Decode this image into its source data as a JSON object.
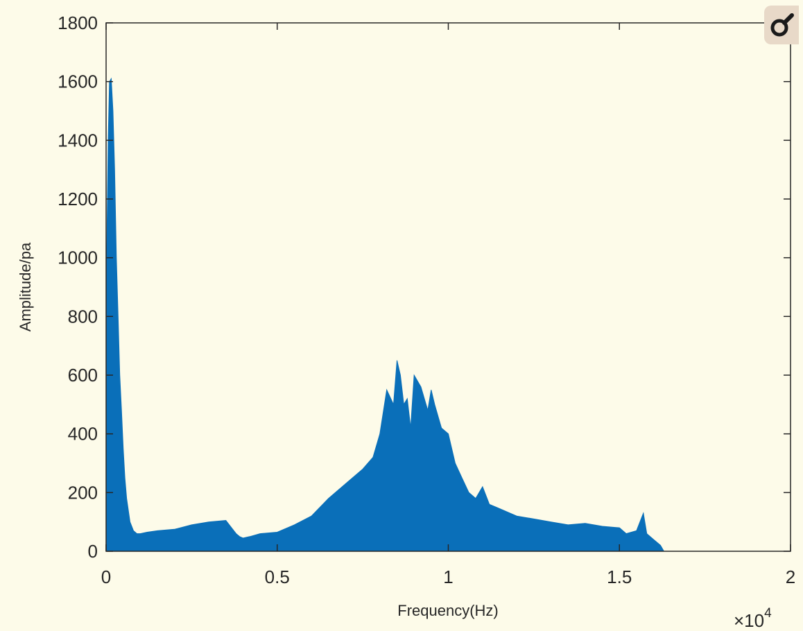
{
  "chart_data": {
    "type": "area",
    "title": "",
    "xlabel": "Frequency(Hz)",
    "ylabel": "Amplitude/pa",
    "x_multiplier_label": "×10",
    "x_multiplier_exponent": "4",
    "xlim": [
      0,
      20000
    ],
    "ylim": [
      0,
      1800
    ],
    "x_ticks": [
      0,
      5000,
      10000,
      15000,
      20000
    ],
    "x_tick_labels": [
      "0",
      "0.5",
      "1",
      "1.5",
      "2"
    ],
    "y_ticks": [
      0,
      200,
      400,
      600,
      800,
      1000,
      1200,
      1400,
      1600,
      1800
    ],
    "y_tick_labels": [
      "0",
      "200",
      "400",
      "600",
      "800",
      "1000",
      "1200",
      "1400",
      "1600",
      "1800"
    ],
    "grid": false,
    "color": "#0a6fb9",
    "series": [
      {
        "x": [
          0,
          60,
          100,
          150,
          200,
          250,
          300,
          350,
          400,
          450,
          500,
          550,
          600,
          700,
          800,
          900,
          1000,
          1200,
          1500,
          2000,
          2500,
          3000,
          3500,
          3800,
          3900,
          4000,
          4200,
          4500,
          5000,
          5500,
          6000,
          6500,
          7000,
          7500,
          7800,
          8000,
          8200,
          8400,
          8500,
          8600,
          8700,
          8800,
          8900,
          9000,
          9200,
          9400,
          9500,
          9600,
          9800,
          10000,
          10200,
          10400,
          10600,
          10800,
          11000,
          11200,
          11400,
          11600,
          11800,
          12000,
          12500,
          13000,
          13500,
          14000,
          14500,
          15000,
          15200,
          15500,
          15700,
          15800,
          16000,
          16200,
          16300,
          17000,
          20000
        ],
        "y": [
          850,
          1400,
          1600,
          1610,
          1500,
          1300,
          1000,
          800,
          600,
          480,
          350,
          250,
          180,
          100,
          70,
          60,
          60,
          65,
          70,
          75,
          90,
          100,
          105,
          60,
          50,
          45,
          50,
          60,
          65,
          90,
          120,
          180,
          230,
          280,
          320,
          400,
          550,
          500,
          650,
          600,
          500,
          520,
          420,
          600,
          560,
          480,
          550,
          500,
          420,
          400,
          300,
          250,
          200,
          180,
          220,
          160,
          150,
          140,
          130,
          120,
          110,
          100,
          90,
          95,
          85,
          80,
          60,
          70,
          130,
          60,
          40,
          20,
          0,
          0,
          0
        ]
      }
    ]
  },
  "icon": {
    "name": "magnifier-icon"
  }
}
